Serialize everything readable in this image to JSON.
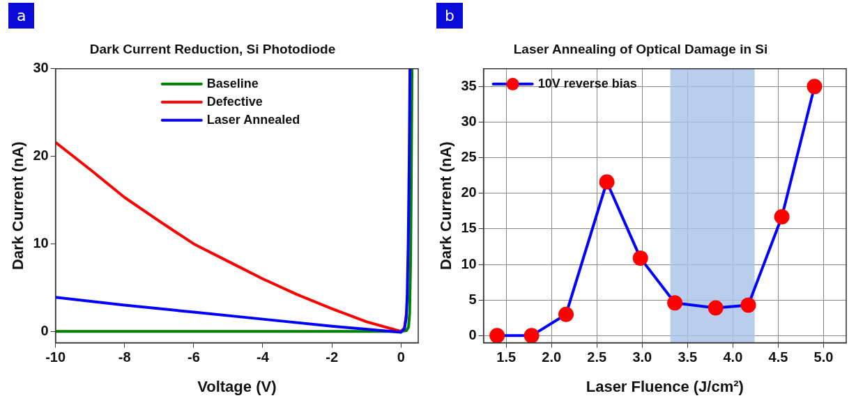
{
  "chart_data": [
    {
      "type": "line",
      "title": "Dark Current Reduction, Si Photodiode",
      "xlabel": "Voltage (V)",
      "ylabel": "Dark Current (nA)",
      "annotations": [
        "a"
      ],
      "xlim": [
        -10,
        0.5
      ],
      "xticks": [
        -10,
        -8,
        -6,
        -4,
        -2,
        0
      ],
      "ylim": [
        -1.3,
        30
      ],
      "yticks": [
        0,
        10,
        20,
        30
      ],
      "legend": "top",
      "marker": "none",
      "line_style": "solid",
      "series": [
        {
          "name": "Baseline",
          "color": "#008000",
          "x": [
            -10,
            0,
            0.16,
            0.22,
            0.25,
            0.28,
            0.3,
            0.32
          ],
          "values": [
            0,
            0,
            0.1,
            0.5,
            2,
            8,
            18,
            30
          ]
        },
        {
          "name": "Defective",
          "color": "#ff0000",
          "x": [
            -10,
            -9,
            -8,
            -7,
            -6,
            -5,
            -4,
            -3,
            -2,
            -1,
            0,
            0.1,
            0.15
          ],
          "values": [
            21.6,
            18.5,
            15.3,
            12.6,
            10,
            8,
            6,
            4.2,
            2.6,
            1.1,
            0,
            0.4,
            1.8
          ]
        },
        {
          "name": "Laser Annealed",
          "color": "#0000ff",
          "x": [
            -10,
            -8,
            -6,
            -4,
            -2,
            0,
            0.1,
            0.15,
            0.18,
            0.21,
            0.24,
            0.26
          ],
          "values": [
            3.9,
            3.0,
            2.2,
            1.4,
            0.6,
            -0.1,
            0.3,
            1.5,
            4,
            10,
            20,
            30
          ]
        }
      ]
    },
    {
      "type": "line",
      "title": "Laser Annealing of Optical Damage in Si",
      "xlabel": "Laser Fluence (J/cm²)",
      "ylabel": "Dark Current (nA)",
      "annotations": [
        "b"
      ],
      "xlim": [
        1.25,
        5.25
      ],
      "xticks": [
        {
          "value": 1.5,
          "label": "1.5"
        },
        {
          "value": 2,
          "label": "2.0"
        },
        {
          "value": 2.5,
          "label": "2.5"
        },
        {
          "value": 3,
          "label": "3.0"
        },
        {
          "value": 3.5,
          "label": "3.5"
        },
        {
          "value": 4,
          "label": "4.0"
        },
        {
          "value": 4.5,
          "label": "4.5"
        },
        {
          "value": 5,
          "label": "5.0"
        }
      ],
      "ylim": [
        -1,
        37.5
      ],
      "yticks": [
        0,
        5,
        10,
        15,
        20,
        25,
        30,
        35
      ],
      "grid": true,
      "legend": "top left",
      "marker": "circle",
      "line_style": "solid",
      "bands": [
        {
          "axis": "x",
          "from": 3.31,
          "to": 4.24,
          "color": "#a8c0e8"
        }
      ],
      "series": [
        {
          "name": "10V reverse bias",
          "color": "#0000ff",
          "colors": [
            "#ff0000",
            "#ff0000",
            "#ff0000",
            "#ff0000",
            "#ff0000",
            "#ff0000",
            "#ff0000",
            "#ff0000",
            "#ff0000",
            "#ff0000"
          ],
          "x": [
            1.4,
            1.78,
            2.16,
            2.61,
            2.98,
            3.36,
            3.81,
            4.17,
            4.54,
            4.9
          ],
          "values": [
            0,
            0,
            3.0,
            21.6,
            10.9,
            4.6,
            3.9,
            4.3,
            16.7,
            35
          ]
        }
      ]
    }
  ]
}
